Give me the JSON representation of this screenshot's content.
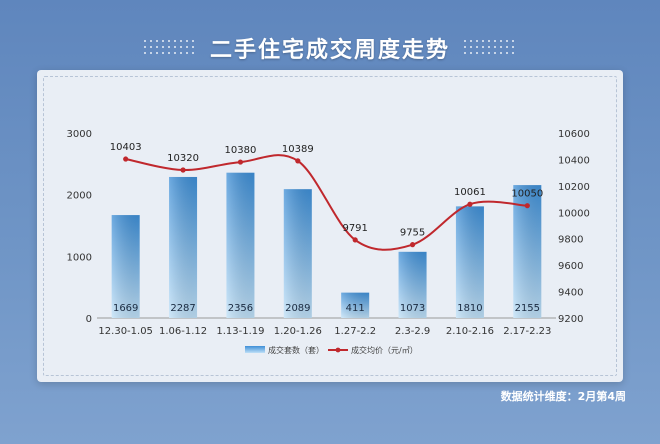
{
  "header": {
    "title": "二手住宅成交周度走势"
  },
  "colors": {
    "bar_top": "#3e8fd7",
    "bar_bottom": "#bfe0f7",
    "line": "#c0282d",
    "axis_text": "#333333",
    "grid": "#d2d9e3"
  },
  "chart_data": {
    "type": "bar",
    "title": "",
    "categories": [
      "12.30-1.05",
      "1.06-1.12",
      "1.13-1.19",
      "1.20-1.26",
      "1.27-2.2",
      "2.3-2.9",
      "2.10-2.16",
      "2.17-2.23"
    ],
    "series": [
      {
        "name": "成交套数（套）",
        "type": "bar",
        "axis": "left",
        "values": [
          1669,
          2287,
          2356,
          2089,
          411,
          1073,
          1810,
          2155
        ]
      },
      {
        "name": "成交均价（元/㎡）",
        "type": "line",
        "axis": "right",
        "values": [
          10403,
          10320,
          10380,
          10389,
          9791,
          9755,
          10061,
          10050
        ]
      }
    ],
    "y_left": {
      "min": 0,
      "max": 3000,
      "ticks": [
        0,
        1000,
        2000,
        3000
      ]
    },
    "y_right": {
      "min": 9200,
      "max": 10600,
      "ticks": [
        9200,
        9400,
        9600,
        9800,
        10000,
        10200,
        10400,
        10600
      ]
    },
    "legend_position": "bottom-center",
    "grid": false
  },
  "footnote": "数据统计维度：2月第4周"
}
